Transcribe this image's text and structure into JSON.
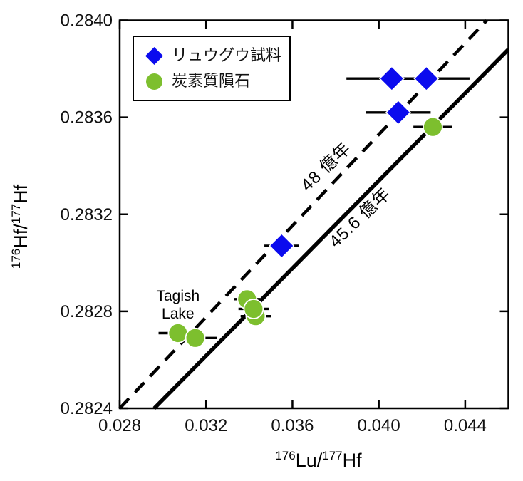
{
  "figure": {
    "background": "#ffffff",
    "border_color": "#000000"
  },
  "chart_data": {
    "type": "scatter",
    "title": "",
    "xlabel": "176Lu/177Hf",
    "ylabel": "176Hf/177Hf",
    "xlabel_parts": {
      "sup_a": "176",
      "base_a": "Lu/",
      "sup_b": "177",
      "base_b": "Hf"
    },
    "ylabel_parts": {
      "sup_a": "176",
      "base_a": "Hf/",
      "sup_b": "177",
      "base_b": "Hf"
    },
    "xlim": [
      0.028,
      0.046
    ],
    "ylim": [
      0.2824,
      0.284
    ],
    "x_ticks": [
      "0.028",
      "0.032",
      "0.036",
      "0.040",
      "0.044"
    ],
    "y_ticks": [
      "0.2824",
      "0.2828",
      "0.2832",
      "0.2836",
      "0.2840"
    ],
    "grid": false,
    "legend_position": "upper-left",
    "colors": {
      "ryugu_blue": "#0b0bee",
      "meteorite_green": "#7dbf2e",
      "line_black": "#000000"
    },
    "series": [
      {
        "name": "リュウグウ試料",
        "marker": "diamond",
        "color": "#0b0bee",
        "points": [
          {
            "x": 0.0406,
            "y": 0.28376,
            "xerr": 0.0021
          },
          {
            "x": 0.0422,
            "y": 0.28376,
            "xerr": 0.002
          },
          {
            "x": 0.0409,
            "y": 0.28362,
            "xerr": 0.0015
          },
          {
            "x": 0.0355,
            "y": 0.28307,
            "xerr": 0.0008
          }
        ]
      },
      {
        "name": "炭素質隕石",
        "marker": "circle",
        "color": "#7dbf2e",
        "points": [
          {
            "x": 0.0425,
            "y": 0.28356,
            "xerr": 0.0009
          },
          {
            "x": 0.0339,
            "y": 0.28285,
            "xerr": 0.0006
          },
          {
            "x": 0.0343,
            "y": 0.28278,
            "xerr": 0.0007
          },
          {
            "x": 0.0342,
            "y": 0.28281,
            "xerr": 0.0007
          },
          {
            "x": 0.0307,
            "y": 0.28271,
            "xerr": 0.0009
          },
          {
            "x": 0.0315,
            "y": 0.28269,
            "xerr": 0.001
          }
        ]
      }
    ],
    "isochrons": [
      {
        "label": "48 億年",
        "style": "dashed",
        "x1": 0.028,
        "y1": 0.2824,
        "x2": 0.045,
        "y2": 0.284,
        "label_x": 0.03773,
        "label_y": 0.28338,
        "label_angle": -44
      },
      {
        "label": "45.6 億年",
        "style": "solid",
        "x1": 0.0296,
        "y1": 0.2824,
        "x2": 0.046,
        "y2": 0.28388,
        "label_x": 0.0393,
        "label_y": 0.28317,
        "label_angle": -44
      }
    ],
    "annotations": [
      {
        "lines": [
          "Tagish",
          "Lake"
        ],
        "x": 0.0307,
        "y": 0.28282
      }
    ]
  }
}
